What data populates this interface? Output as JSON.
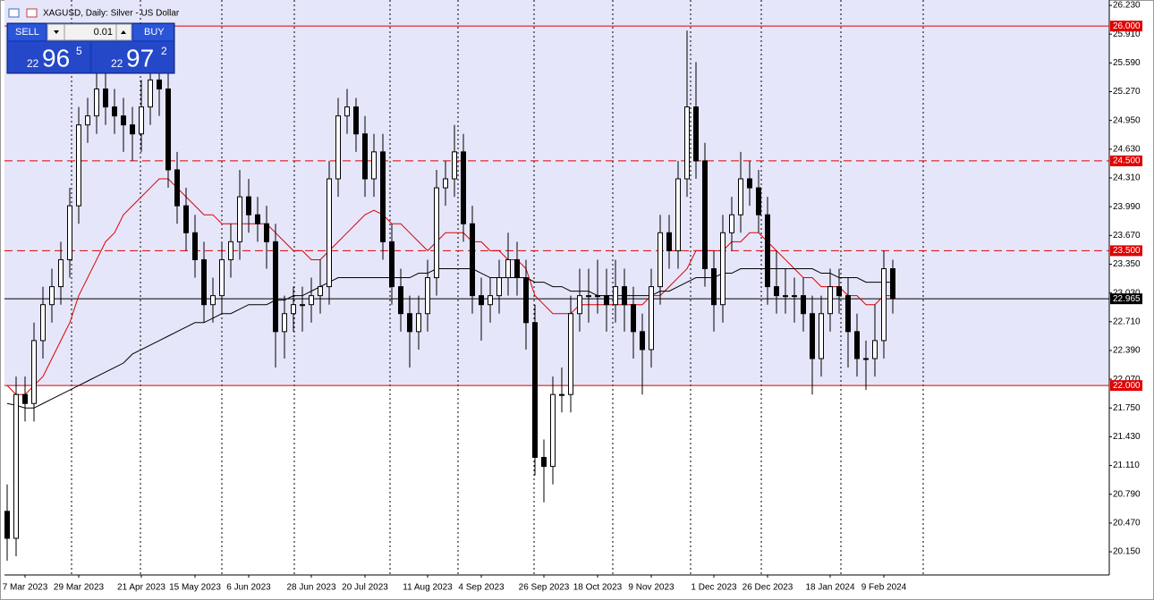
{
  "chart_data": {
    "type": "candlestick",
    "title": "XAGUSD, Daily:  Silver - US Dollar",
    "categories": [
      null,
      null,
      "7 Mar 2023",
      null,
      null,
      null,
      null,
      null,
      "29 Mar 2023",
      null,
      null,
      null,
      null,
      null,
      null,
      "21 Apr 2023",
      null,
      null,
      null,
      null,
      null,
      "15 May 2023",
      null,
      null,
      null,
      null,
      null,
      "6 Jun 2023",
      null,
      null,
      null,
      null,
      null,
      null,
      "28 Jun 2023",
      null,
      null,
      null,
      null,
      null,
      "20 Jul 2023",
      null,
      null,
      null,
      null,
      null,
      null,
      "11 Aug 2023",
      null,
      null,
      null,
      null,
      null,
      "4 Sep 2023",
      null,
      null,
      null,
      null,
      null,
      null,
      "26 Sep 2023",
      null,
      null,
      null,
      null,
      null,
      "18 Oct 2023",
      null,
      null,
      null,
      null,
      null,
      "9 Nov 2023",
      null,
      null,
      null,
      null,
      null,
      null,
      "1 Dec 2023",
      null,
      null,
      null,
      null,
      null,
      "26 Dec 2023",
      null,
      null,
      null,
      null,
      null,
      null,
      "18 Jan 2024",
      null,
      null,
      null,
      null,
      null,
      "9 Feb 2024",
      null
    ],
    "open": [
      20.6,
      20.3,
      21.9,
      21.8,
      22.5,
      22.9,
      23.1,
      23.4,
      24.0,
      24.9,
      25.0,
      25.3,
      25.1,
      25.0,
      24.9,
      24.8,
      25.1,
      25.4,
      25.3,
      24.4,
      24.0,
      23.7,
      23.4,
      22.9,
      23.0,
      23.4,
      23.6,
      24.1,
      23.9,
      23.8,
      23.6,
      22.6,
      22.8,
      22.9,
      22.9,
      23.0,
      23.1,
      24.3,
      25.0,
      25.1,
      24.8,
      24.3,
      24.6,
      23.6,
      23.1,
      22.8,
      22.6,
      22.8,
      23.2,
      24.2,
      24.3,
      24.6,
      23.8,
      23.0,
      22.9,
      23.0,
      23.2,
      23.4,
      23.2,
      22.7,
      21.2,
      21.1,
      21.9,
      21.9,
      22.8,
      23.0,
      23.0,
      23.0,
      22.9,
      23.1,
      22.9,
      22.6,
      22.4,
      23.1,
      23.7,
      23.5,
      24.3,
      25.1,
      24.5,
      23.3,
      22.9,
      23.7,
      23.9,
      24.3,
      24.2,
      23.9,
      23.1,
      23.0,
      23.0,
      23.0,
      22.8,
      22.3,
      22.8,
      23.1,
      23.0,
      22.6,
      22.3,
      22.3,
      22.5,
      23.3
    ],
    "high": [
      20.9,
      22.1,
      22.1,
      22.7,
      23.1,
      23.3,
      23.6,
      24.2,
      25.1,
      25.2,
      25.6,
      25.5,
      25.3,
      25.2,
      25.1,
      25.4,
      25.8,
      25.6,
      25.5,
      24.6,
      24.2,
      23.9,
      23.6,
      23.2,
      23.6,
      23.8,
      24.4,
      24.3,
      24.1,
      24.0,
      23.8,
      23.0,
      23.1,
      23.1,
      23.2,
      23.4,
      24.5,
      25.2,
      25.3,
      25.2,
      25.0,
      24.8,
      24.8,
      23.8,
      23.3,
      23.0,
      23.0,
      23.4,
      24.4,
      24.5,
      24.9,
      24.8,
      24.0,
      23.2,
      23.2,
      23.4,
      23.7,
      23.6,
      23.4,
      22.9,
      21.4,
      22.1,
      22.2,
      23.0,
      23.3,
      23.3,
      23.4,
      23.3,
      23.4,
      23.3,
      23.1,
      22.8,
      23.3,
      23.9,
      23.9,
      24.5,
      25.95,
      25.6,
      24.7,
      23.5,
      23.9,
      24.1,
      24.6,
      24.5,
      24.4,
      24.1,
      23.5,
      23.3,
      23.2,
      23.2,
      23.0,
      23.0,
      23.3,
      23.3,
      23.2,
      22.8,
      22.5,
      22.9,
      23.5,
      23.4
    ],
    "low": [
      20.05,
      20.1,
      21.6,
      21.6,
      22.3,
      22.7,
      22.9,
      23.2,
      23.8,
      24.7,
      24.8,
      24.9,
      24.8,
      24.6,
      24.5,
      24.6,
      24.9,
      25.0,
      24.2,
      23.8,
      23.5,
      23.2,
      22.7,
      22.7,
      22.8,
      23.2,
      23.4,
      23.7,
      23.6,
      23.3,
      22.2,
      22.3,
      22.6,
      22.6,
      22.7,
      22.8,
      22.9,
      24.1,
      24.8,
      24.6,
      24.1,
      24.1,
      23.4,
      22.9,
      22.6,
      22.2,
      22.4,
      22.6,
      23.0,
      24.0,
      24.1,
      23.6,
      22.8,
      22.5,
      22.7,
      22.8,
      23.0,
      23.0,
      22.4,
      21.0,
      20.7,
      20.9,
      21.7,
      21.7,
      22.6,
      22.7,
      22.8,
      22.6,
      22.7,
      22.6,
      22.3,
      21.9,
      22.2,
      22.9,
      23.3,
      23.3,
      24.1,
      24.3,
      23.1,
      22.6,
      22.7,
      23.5,
      23.7,
      24.0,
      23.7,
      22.9,
      22.8,
      22.8,
      22.7,
      22.6,
      21.9,
      22.1,
      22.6,
      22.8,
      22.2,
      22.1,
      21.95,
      22.1,
      22.3,
      22.8
    ],
    "close": [
      20.3,
      21.9,
      21.8,
      22.5,
      22.9,
      23.1,
      23.4,
      24.0,
      24.9,
      25.0,
      25.3,
      25.1,
      25.0,
      24.9,
      24.8,
      25.1,
      25.4,
      25.3,
      24.4,
      24.0,
      23.7,
      23.4,
      22.9,
      23.0,
      23.4,
      23.6,
      24.1,
      23.9,
      23.8,
      23.6,
      22.6,
      22.8,
      22.9,
      22.9,
      23.0,
      23.1,
      24.3,
      25.0,
      25.1,
      24.8,
      24.3,
      24.6,
      23.6,
      23.1,
      22.8,
      22.6,
      22.8,
      23.2,
      24.2,
      24.3,
      24.6,
      23.8,
      23.0,
      22.9,
      23.0,
      23.2,
      23.4,
      23.2,
      22.7,
      21.2,
      21.1,
      21.9,
      21.9,
      22.8,
      23.0,
      23.0,
      23.0,
      22.9,
      23.1,
      22.9,
      22.6,
      22.4,
      23.1,
      23.7,
      23.5,
      24.3,
      25.1,
      24.5,
      23.3,
      22.9,
      23.7,
      23.9,
      24.3,
      24.2,
      23.9,
      23.1,
      23.0,
      23.0,
      23.0,
      22.8,
      22.3,
      22.8,
      23.1,
      23.0,
      22.6,
      22.3,
      22.3,
      22.5,
      23.3,
      22.97
    ],
    "up_color": "#ffffff",
    "down_color": "#000000",
    "moving_averages": [
      {
        "color": "#e00000",
        "values": [
          22.0,
          21.9,
          21.9,
          22.0,
          22.1,
          22.3,
          22.5,
          22.7,
          23.0,
          23.2,
          23.4,
          23.6,
          23.7,
          23.9,
          24.0,
          24.1,
          24.2,
          24.3,
          24.3,
          24.2,
          24.1,
          24.0,
          23.9,
          23.9,
          23.8,
          23.8,
          23.8,
          23.8,
          23.8,
          23.8,
          23.7,
          23.6,
          23.5,
          23.5,
          23.4,
          23.4,
          23.5,
          23.6,
          23.7,
          23.8,
          23.9,
          23.95,
          23.9,
          23.8,
          23.8,
          23.7,
          23.6,
          23.5,
          23.6,
          23.7,
          23.7,
          23.7,
          23.6,
          23.6,
          23.5,
          23.5,
          23.4,
          23.4,
          23.3,
          23.0,
          22.9,
          22.8,
          22.8,
          22.8,
          22.9,
          22.9,
          22.9,
          22.9,
          22.9,
          22.9,
          22.9,
          22.9,
          23.0,
          23.0,
          23.1,
          23.2,
          23.3,
          23.5,
          23.5,
          23.5,
          23.5,
          23.6,
          23.6,
          23.7,
          23.7,
          23.6,
          23.5,
          23.4,
          23.3,
          23.2,
          23.2,
          23.1,
          23.1,
          23.1,
          23.0,
          23.0,
          22.9,
          22.9,
          23.0,
          23.0
        ]
      },
      {
        "color": "#000000",
        "values": [
          21.8,
          21.78,
          21.75,
          21.75,
          21.8,
          21.85,
          21.9,
          21.95,
          22.0,
          22.05,
          22.1,
          22.15,
          22.2,
          22.25,
          22.35,
          22.4,
          22.45,
          22.5,
          22.55,
          22.6,
          22.65,
          22.7,
          22.7,
          22.75,
          22.8,
          22.8,
          22.85,
          22.9,
          22.9,
          22.9,
          22.95,
          22.95,
          23.0,
          23.0,
          23.05,
          23.1,
          23.15,
          23.2,
          23.2,
          23.2,
          23.2,
          23.2,
          23.2,
          23.2,
          23.2,
          23.2,
          23.25,
          23.25,
          23.3,
          23.3,
          23.3,
          23.3,
          23.3,
          23.25,
          23.2,
          23.2,
          23.2,
          23.2,
          23.2,
          23.15,
          23.15,
          23.1,
          23.1,
          23.05,
          23.05,
          23.05,
          23.0,
          23.0,
          23.0,
          23.0,
          23.0,
          23.0,
          23.0,
          23.05,
          23.05,
          23.1,
          23.15,
          23.2,
          23.2,
          23.2,
          23.25,
          23.25,
          23.3,
          23.3,
          23.3,
          23.3,
          23.3,
          23.3,
          23.3,
          23.3,
          23.3,
          23.25,
          23.25,
          23.2,
          23.2,
          23.2,
          23.15,
          23.15,
          23.15,
          23.15
        ]
      }
    ],
    "ylim": [
      19.892,
      26.29
    ],
    "yticks": [
      {
        "value": 26.23,
        "label": "26.230"
      },
      {
        "value": 25.91,
        "label": "25.910"
      },
      {
        "value": 25.59,
        "label": "25.590"
      },
      {
        "value": 25.27,
        "label": "25.270"
      },
      {
        "value": 24.95,
        "label": "24.950"
      },
      {
        "value": 24.63,
        "label": "24.630"
      },
      {
        "value": 24.31,
        "label": "24.310"
      },
      {
        "value": 23.99,
        "label": "23.990"
      },
      {
        "value": 23.67,
        "label": "23.670"
      },
      {
        "value": 23.35,
        "label": "23.350"
      },
      {
        "value": 23.03,
        "label": "23.030"
      },
      {
        "value": 22.71,
        "label": "22.710"
      },
      {
        "value": 22.39,
        "label": "22.390"
      },
      {
        "value": 22.07,
        "label": "22.070"
      },
      {
        "value": 21.75,
        "label": "21.750"
      },
      {
        "value": 21.43,
        "label": "21.430"
      },
      {
        "value": 21.11,
        "label": "21.110"
      },
      {
        "value": 20.79,
        "label": "20.790"
      },
      {
        "value": 20.47,
        "label": "20.470"
      },
      {
        "value": 20.15,
        "label": "20.150"
      }
    ],
    "levels": [
      {
        "value": 26.0,
        "label": "26.000",
        "style": "solid",
        "color": "#e00000"
      },
      {
        "value": 24.5,
        "label": "24.500",
        "style": "dashed",
        "color": "#e00000"
      },
      {
        "value": 23.5,
        "label": "23.500",
        "style": "dashed",
        "color": "#e00000"
      },
      {
        "value": 22.0,
        "label": "22.000",
        "style": "solid",
        "color": "#e00000"
      }
    ],
    "shade_color": "#e6e6fa",
    "last_price": {
      "value": 22.965,
      "label": "22.965",
      "color": "#000000"
    }
  },
  "trade_panel": {
    "sell": "SELL",
    "buy": "BUY",
    "lot": "0.01",
    "bid": [
      "22",
      "96",
      "5"
    ],
    "ask": [
      "22",
      "97",
      "2"
    ]
  }
}
